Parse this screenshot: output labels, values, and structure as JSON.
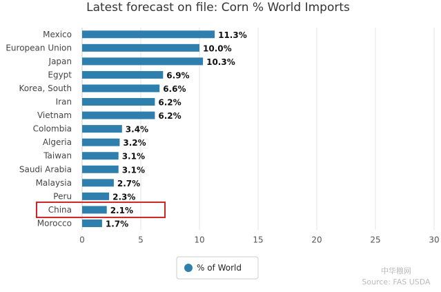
{
  "chart_data": {
    "type": "bar",
    "orientation": "horizontal",
    "title": "Latest forecast on file: Corn % World Imports",
    "categories": [
      "Mexico",
      "European Union",
      "Japan",
      "Egypt",
      "Korea, South",
      "Iran",
      "Vietnam",
      "Colombia",
      "Algeria",
      "Taiwan",
      "Saudi Arabia",
      "Malaysia",
      "Peru",
      "China",
      "Morocco"
    ],
    "series": [
      {
        "name": "% of World",
        "values": [
          11.3,
          10.0,
          10.3,
          6.9,
          6.6,
          6.2,
          6.2,
          3.4,
          3.2,
          3.1,
          3.1,
          2.7,
          2.3,
          2.1,
          1.7
        ],
        "labels": [
          "11.3%",
          "10.0%",
          "10.3%",
          "6.9%",
          "6.6%",
          "6.2%",
          "6.2%",
          "3.4%",
          "3.2%",
          "3.1%",
          "3.1%",
          "2.7%",
          "2.3%",
          "2.1%",
          "1.7%"
        ]
      }
    ],
    "xticks": [
      "0",
      "5",
      "10",
      "15",
      "20",
      "25",
      "30"
    ],
    "xlim": [
      0,
      30
    ],
    "grid": true,
    "legend": "bottom-center",
    "highlighted_category": "China",
    "colors": {
      "bar": "#2e7fad",
      "highlight_box": "#cc2222",
      "grid": "#e3e3e3"
    }
  },
  "watermark": {
    "text": "中华粮网",
    "source": "Source: FAS USDA"
  }
}
